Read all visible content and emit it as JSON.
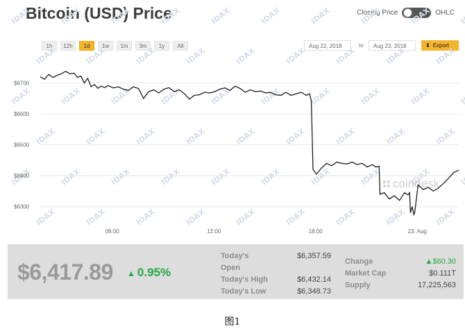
{
  "header": {
    "title": "Bitcoin (USD) Price"
  },
  "toggle": {
    "left_label": "Closing Price",
    "right_label": "OHLC"
  },
  "ranges": [
    "1h",
    "12h",
    "1d",
    "1w",
    "1m",
    "3m",
    "1y",
    "All"
  ],
  "active_range": "1d",
  "date_range": {
    "from": "Aug 22, 2018",
    "to_label": "to",
    "to": "Aug 23, 2018"
  },
  "export_label": "Export",
  "colors": {
    "accent": "#f6b42d",
    "positive": "#27a845",
    "line": "#1a1a1a"
  },
  "chart_data": {
    "type": "line",
    "y_tick_labels": [
      "$6700",
      "$6600",
      "$6500",
      "$6400",
      "$6300"
    ],
    "y_ticks": [
      6700,
      6600,
      6500,
      6400,
      6300
    ],
    "x_tick_labels": [
      "06:00",
      "12:00",
      "18:00",
      "23. Aug"
    ],
    "x_ticks": [
      4.25,
      10.25,
      16.25,
      22.25
    ],
    "xlim": [
      0,
      24.7
    ],
    "ylim": [
      6205,
      6780
    ],
    "grid": true,
    "watermark": "coindesk",
    "series": [
      {
        "x": [
          0.0,
          0.25,
          0.5,
          0.75,
          1.0,
          1.25,
          1.5,
          1.75,
          2.0,
          2.2,
          2.4,
          2.6,
          2.8,
          3.0,
          3.2,
          3.4,
          3.6,
          3.8,
          4.0,
          4.3,
          4.6,
          4.9,
          5.2,
          5.5,
          5.8,
          6.1,
          6.4,
          6.7,
          7.0,
          7.3,
          7.6,
          7.9,
          8.2,
          8.5,
          8.8,
          9.1,
          9.4,
          9.7,
          10.0,
          10.3,
          10.6,
          10.9,
          11.2,
          11.5,
          11.8,
          12.1,
          12.4,
          12.7,
          13.0,
          13.3,
          13.6,
          13.9,
          14.2,
          14.5,
          14.8,
          15.1,
          15.4,
          15.7,
          15.9,
          16.0,
          16.1,
          16.3,
          16.6,
          16.9,
          17.2,
          17.5,
          17.8,
          18.1,
          18.4,
          18.7,
          19.0,
          19.3,
          19.6,
          19.8,
          20.0,
          20.05,
          20.3,
          20.6,
          20.9,
          21.2,
          21.5,
          21.7,
          21.8,
          21.85,
          21.95,
          22.05,
          22.1,
          22.3,
          22.6,
          22.9,
          23.2,
          23.5,
          23.8,
          24.1,
          24.4,
          24.7
        ],
        "y": [
          6720,
          6712,
          6728,
          6718,
          6725,
          6730,
          6738,
          6730,
          6732,
          6718,
          6722,
          6700,
          6715,
          6688,
          6695,
          6683,
          6690,
          6685,
          6692,
          6684,
          6688,
          6680,
          6676,
          6688,
          6682,
          6650,
          6672,
          6678,
          6668,
          6680,
          6685,
          6672,
          6678,
          6666,
          6648,
          6660,
          6662,
          6670,
          6668,
          6672,
          6680,
          6684,
          6676,
          6690,
          6682,
          6670,
          6678,
          6672,
          6674,
          6668,
          6670,
          6662,
          6660,
          6670,
          6660,
          6665,
          6670,
          6660,
          6665,
          6640,
          6420,
          6405,
          6425,
          6440,
          6432,
          6444,
          6440,
          6438,
          6444,
          6436,
          6440,
          6428,
          6436,
          6428,
          6430,
          6340,
          6345,
          6325,
          6335,
          6320,
          6345,
          6338,
          6345,
          6280,
          6300,
          6274,
          6280,
          6370,
          6355,
          6362,
          6350,
          6360,
          6375,
          6392,
          6410,
          6418
        ]
      }
    ]
  },
  "stats": {
    "price": "$6,417.89",
    "change_pct": "0.95%",
    "open_label_1": "Today's",
    "open_label_2": "Open",
    "open_value": "$6,357.59",
    "high_label": "Today's High",
    "high_value": "$6,432.14",
    "low_label": "Today's Low",
    "low_value": "$6,348.73",
    "change_label": "Change",
    "change_value": "$60.30",
    "mcap_label": "Market Cap",
    "mcap_value": "$0.111T",
    "supply_label": "Supply",
    "supply_value": "17,225,563"
  },
  "watermark_text": "IDAX",
  "caption": "图1"
}
